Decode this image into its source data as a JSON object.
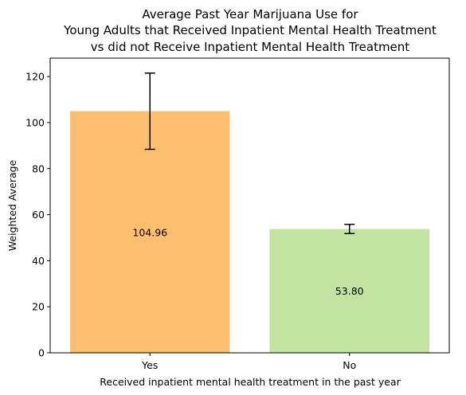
{
  "chart_data": {
    "type": "bar",
    "title_lines": [
      "Average Past Year Marijuana Use for",
      "Young Adults that Received Inpatient Mental Health Treatment",
      "vs did not Receive Inpatient Mental Health Treatment"
    ],
    "xlabel": "Received inpatient mental health treatment in the past year",
    "ylabel": "Weighted Average",
    "categories": [
      "Yes",
      "No"
    ],
    "values": [
      104.96,
      53.8
    ],
    "value_labels": [
      "104.96",
      "53.80"
    ],
    "error_low": [
      88.4,
      51.8
    ],
    "error_high": [
      121.5,
      55.8
    ],
    "colors": [
      "#fdbf6f",
      "#c2e4a0"
    ],
    "ylim": [
      0,
      128
    ],
    "yticks": [
      0,
      20,
      40,
      60,
      80,
      100,
      120
    ],
    "grid": false
  }
}
